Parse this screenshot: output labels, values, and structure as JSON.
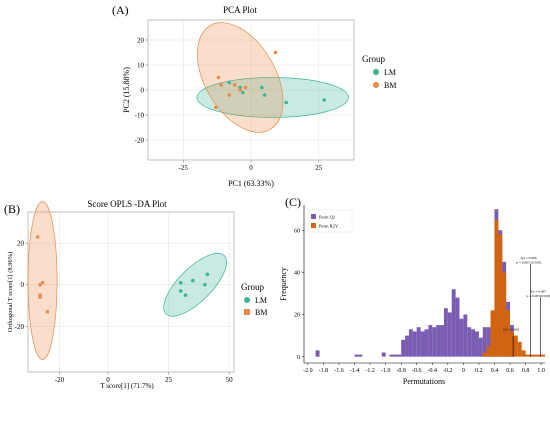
{
  "chart_data": [
    {
      "panel": "(A)",
      "type": "scatter",
      "title": "PCA Plot",
      "xlabel": "PC1 (63.33%)",
      "ylabel": "PC2 (15.88%)",
      "xlim": [
        -38,
        38
      ],
      "ylim": [
        -28,
        28
      ],
      "xticks": [
        -25,
        0,
        25
      ],
      "yticks": [
        -20,
        -10,
        0,
        10,
        20
      ],
      "legend": {
        "title": "Group",
        "placement": "right",
        "items": [
          "LM",
          "BM"
        ]
      },
      "colors": {
        "LM": "#3bb59a",
        "BM": "#e98a46"
      },
      "series": [
        {
          "name": "LM",
          "points": [
            [
              -8,
              3
            ],
            [
              -4,
              1
            ],
            [
              -3,
              -1
            ],
            [
              4,
              1
            ],
            [
              5,
              -2
            ],
            [
              13,
              -5
            ],
            [
              27,
              -4
            ]
          ]
        },
        {
          "name": "BM",
          "points": [
            [
              -13,
              -7
            ],
            [
              -12,
              5
            ],
            [
              -11,
              2
            ],
            [
              -8,
              -2
            ],
            [
              -6,
              2
            ],
            [
              -4,
              0
            ],
            [
              -2,
              1
            ],
            [
              9,
              15
            ]
          ]
        }
      ],
      "ellipses": [
        {
          "group": "LM",
          "cx": 8,
          "cy": -3,
          "rx": 28,
          "ry": 8,
          "angle": 0
        },
        {
          "group": "BM",
          "cx": -4,
          "cy": 5,
          "rx": 13,
          "ry": 24,
          "angle": 30
        }
      ]
    },
    {
      "panel": "(B)",
      "type": "scatter",
      "title": "Score OPLS -DA Plot",
      "xlabel": "T score[1] (71.7%)",
      "ylabel": "Orthogonal T score[1] (8.96%)",
      "xlim": [
        -33,
        52
      ],
      "ylim": [
        -42,
        35
      ],
      "xticks": [
        -20,
        0,
        25,
        50
      ],
      "yticks": [
        -20,
        0,
        20
      ],
      "legend": {
        "title": "Group",
        "placement": "right",
        "items": [
          "LM",
          "BM"
        ]
      },
      "colors": {
        "LM": "#3bb59a",
        "BM": "#e98a46"
      },
      "series": [
        {
          "name": "LM",
          "points": [
            [
              30,
              -3
            ],
            [
              30,
              1
            ],
            [
              32,
              -5
            ],
            [
              35,
              2
            ],
            [
              40,
              0
            ],
            [
              41,
              5
            ]
          ]
        },
        {
          "name": "BM",
          "points": [
            [
              -29,
              23
            ],
            [
              -28,
              0
            ],
            [
              -27,
              1
            ],
            [
              -28,
              -5
            ],
            [
              -28,
              -6
            ],
            [
              -25,
              -13
            ]
          ]
        }
      ],
      "ellipses": [
        {
          "group": "LM",
          "cx": 36,
          "cy": 0,
          "rx": 17,
          "ry": 8,
          "angle": 45
        },
        {
          "group": "BM",
          "cx": -27,
          "cy": 2,
          "rx": 6,
          "ry": 38,
          "angle": 0
        }
      ]
    },
    {
      "panel": "(C)",
      "type": "bar",
      "title": "",
      "xlabel": "Permutations",
      "ylabel": "Frequency",
      "xlim": [
        -2.05,
        1.05
      ],
      "ylim": [
        -3,
        72
      ],
      "xticks": [
        "-2.0",
        "-1.8",
        "-1.6",
        "-1.4",
        "-1.2",
        "-1.0",
        "-0.8",
        "-0.6",
        "-0.4",
        "-0.2",
        "0",
        "0.2",
        "0.4",
        "0.6",
        "0.8",
        "1.0"
      ],
      "yticks": [
        0,
        20,
        40,
        60
      ],
      "legend": {
        "placement": "top-left",
        "items": [
          "Perm Q2",
          "Perm R2Y"
        ]
      },
      "colors": {
        "Perm Q2": "#7b5cb3",
        "Perm R2Y": "#d2640f"
      },
      "bin_width": 0.05,
      "series": [
        {
          "name": "Perm Q2",
          "bins": [
            [
              -1.9,
              3
            ],
            [
              -1.4,
              1
            ],
            [
              -1.35,
              1
            ],
            [
              -1.05,
              2
            ],
            [
              -0.95,
              1
            ],
            [
              -0.9,
              1
            ],
            [
              -0.85,
              1
            ],
            [
              -0.8,
              8
            ],
            [
              -0.75,
              10
            ],
            [
              -0.7,
              13
            ],
            [
              -0.65,
              12
            ],
            [
              -0.6,
              14
            ],
            [
              -0.55,
              12
            ],
            [
              -0.5,
              13
            ],
            [
              -0.45,
              15
            ],
            [
              -0.4,
              14
            ],
            [
              -0.35,
              15
            ],
            [
              -0.3,
              15
            ],
            [
              -0.25,
              23
            ],
            [
              -0.2,
              21
            ],
            [
              -0.15,
              32
            ],
            [
              -0.1,
              28
            ],
            [
              -0.05,
              18
            ],
            [
              0.0,
              20
            ],
            [
              0.05,
              14
            ],
            [
              0.1,
              13
            ],
            [
              0.15,
              12
            ],
            [
              0.2,
              9
            ],
            [
              0.25,
              14
            ],
            [
              0.3,
              14
            ],
            [
              0.35,
              20
            ],
            [
              0.4,
              70
            ],
            [
              0.45,
              60
            ],
            [
              0.5,
              45
            ],
            [
              0.55,
              26
            ],
            [
              0.6,
              15
            ]
          ]
        },
        {
          "name": "Perm R2Y",
          "bins": [
            [
              0.25,
              2
            ],
            [
              0.3,
              5
            ],
            [
              0.35,
              22
            ],
            [
              0.4,
              65
            ],
            [
              0.45,
              58
            ],
            [
              0.5,
              40
            ],
            [
              0.55,
              22
            ],
            [
              0.6,
              12
            ],
            [
              0.65,
              10
            ],
            [
              0.7,
              7
            ],
            [
              0.75,
              3
            ],
            [
              0.8,
              1
            ],
            [
              0.85,
              1
            ],
            [
              0.9,
              1
            ],
            [
              0.95,
              1
            ],
            [
              1.0,
              1
            ]
          ]
        }
      ],
      "annotations": [
        {
          "x": 0.64,
          "y": 10,
          "lines": [
            "Q2 = 0.636"
          ]
        },
        {
          "x": 0.865,
          "y": 44,
          "lines": [
            "Q2 = 0.908",
            "p = 0.005 (0/100)"
          ]
        },
        {
          "x": 0.99,
          "y": 28,
          "lines": [
            "R2 = 0.987",
            "p = 0.005(0/100)"
          ]
        }
      ]
    }
  ]
}
